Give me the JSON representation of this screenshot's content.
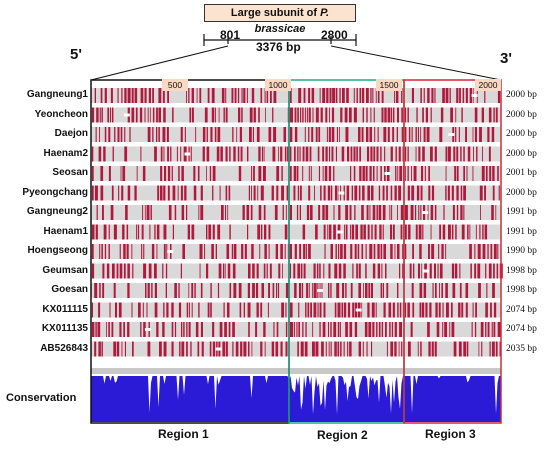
{
  "title": {
    "text": "Large subunit of ",
    "species": "P. brassicae"
  },
  "range": {
    "start": "801",
    "end": "2800",
    "length": "3376 bp"
  },
  "ends": {
    "five_prime": "5'",
    "three_prime": "3'"
  },
  "ticks": [
    "500",
    "1000",
    "1500",
    "2000"
  ],
  "samples": [
    {
      "name": "Gangneung1",
      "bp": "2000 bp"
    },
    {
      "name": "Yeoncheon",
      "bp": "2000 bp"
    },
    {
      "name": "Daejon",
      "bp": "2000 bp"
    },
    {
      "name": "Haenam2",
      "bp": "2000 bp"
    },
    {
      "name": "Seosan",
      "bp": "2001 bp"
    },
    {
      "name": "Pyeongchang",
      "bp": "2000 bp"
    },
    {
      "name": "Gangneung2",
      "bp": "1991 bp"
    },
    {
      "name": "Haenam1",
      "bp": "1991 bp"
    },
    {
      "name": "Hoengseong",
      "bp": "1990 bp"
    },
    {
      "name": "Geumsan",
      "bp": "1998 bp"
    },
    {
      "name": "Goesan",
      "bp": "1998 bp"
    },
    {
      "name": "KX011115",
      "bp": "2074 bp"
    },
    {
      "name": "KX011135",
      "bp": "2074 bp"
    },
    {
      "name": "AB526843",
      "bp": "2035 bp"
    }
  ],
  "conservation_label": "Conservation",
  "regions": [
    {
      "label": "Region 1",
      "color": "#111111"
    },
    {
      "label": "Region 2",
      "color": "#22a884"
    },
    {
      "label": "Region 3",
      "color": "#d62839"
    }
  ],
  "colors": {
    "track_bg": "#d9d9d9",
    "variant": "#b0183c",
    "conservation": "#2b1bd6",
    "tick_bg": "#fad8c2"
  }
}
